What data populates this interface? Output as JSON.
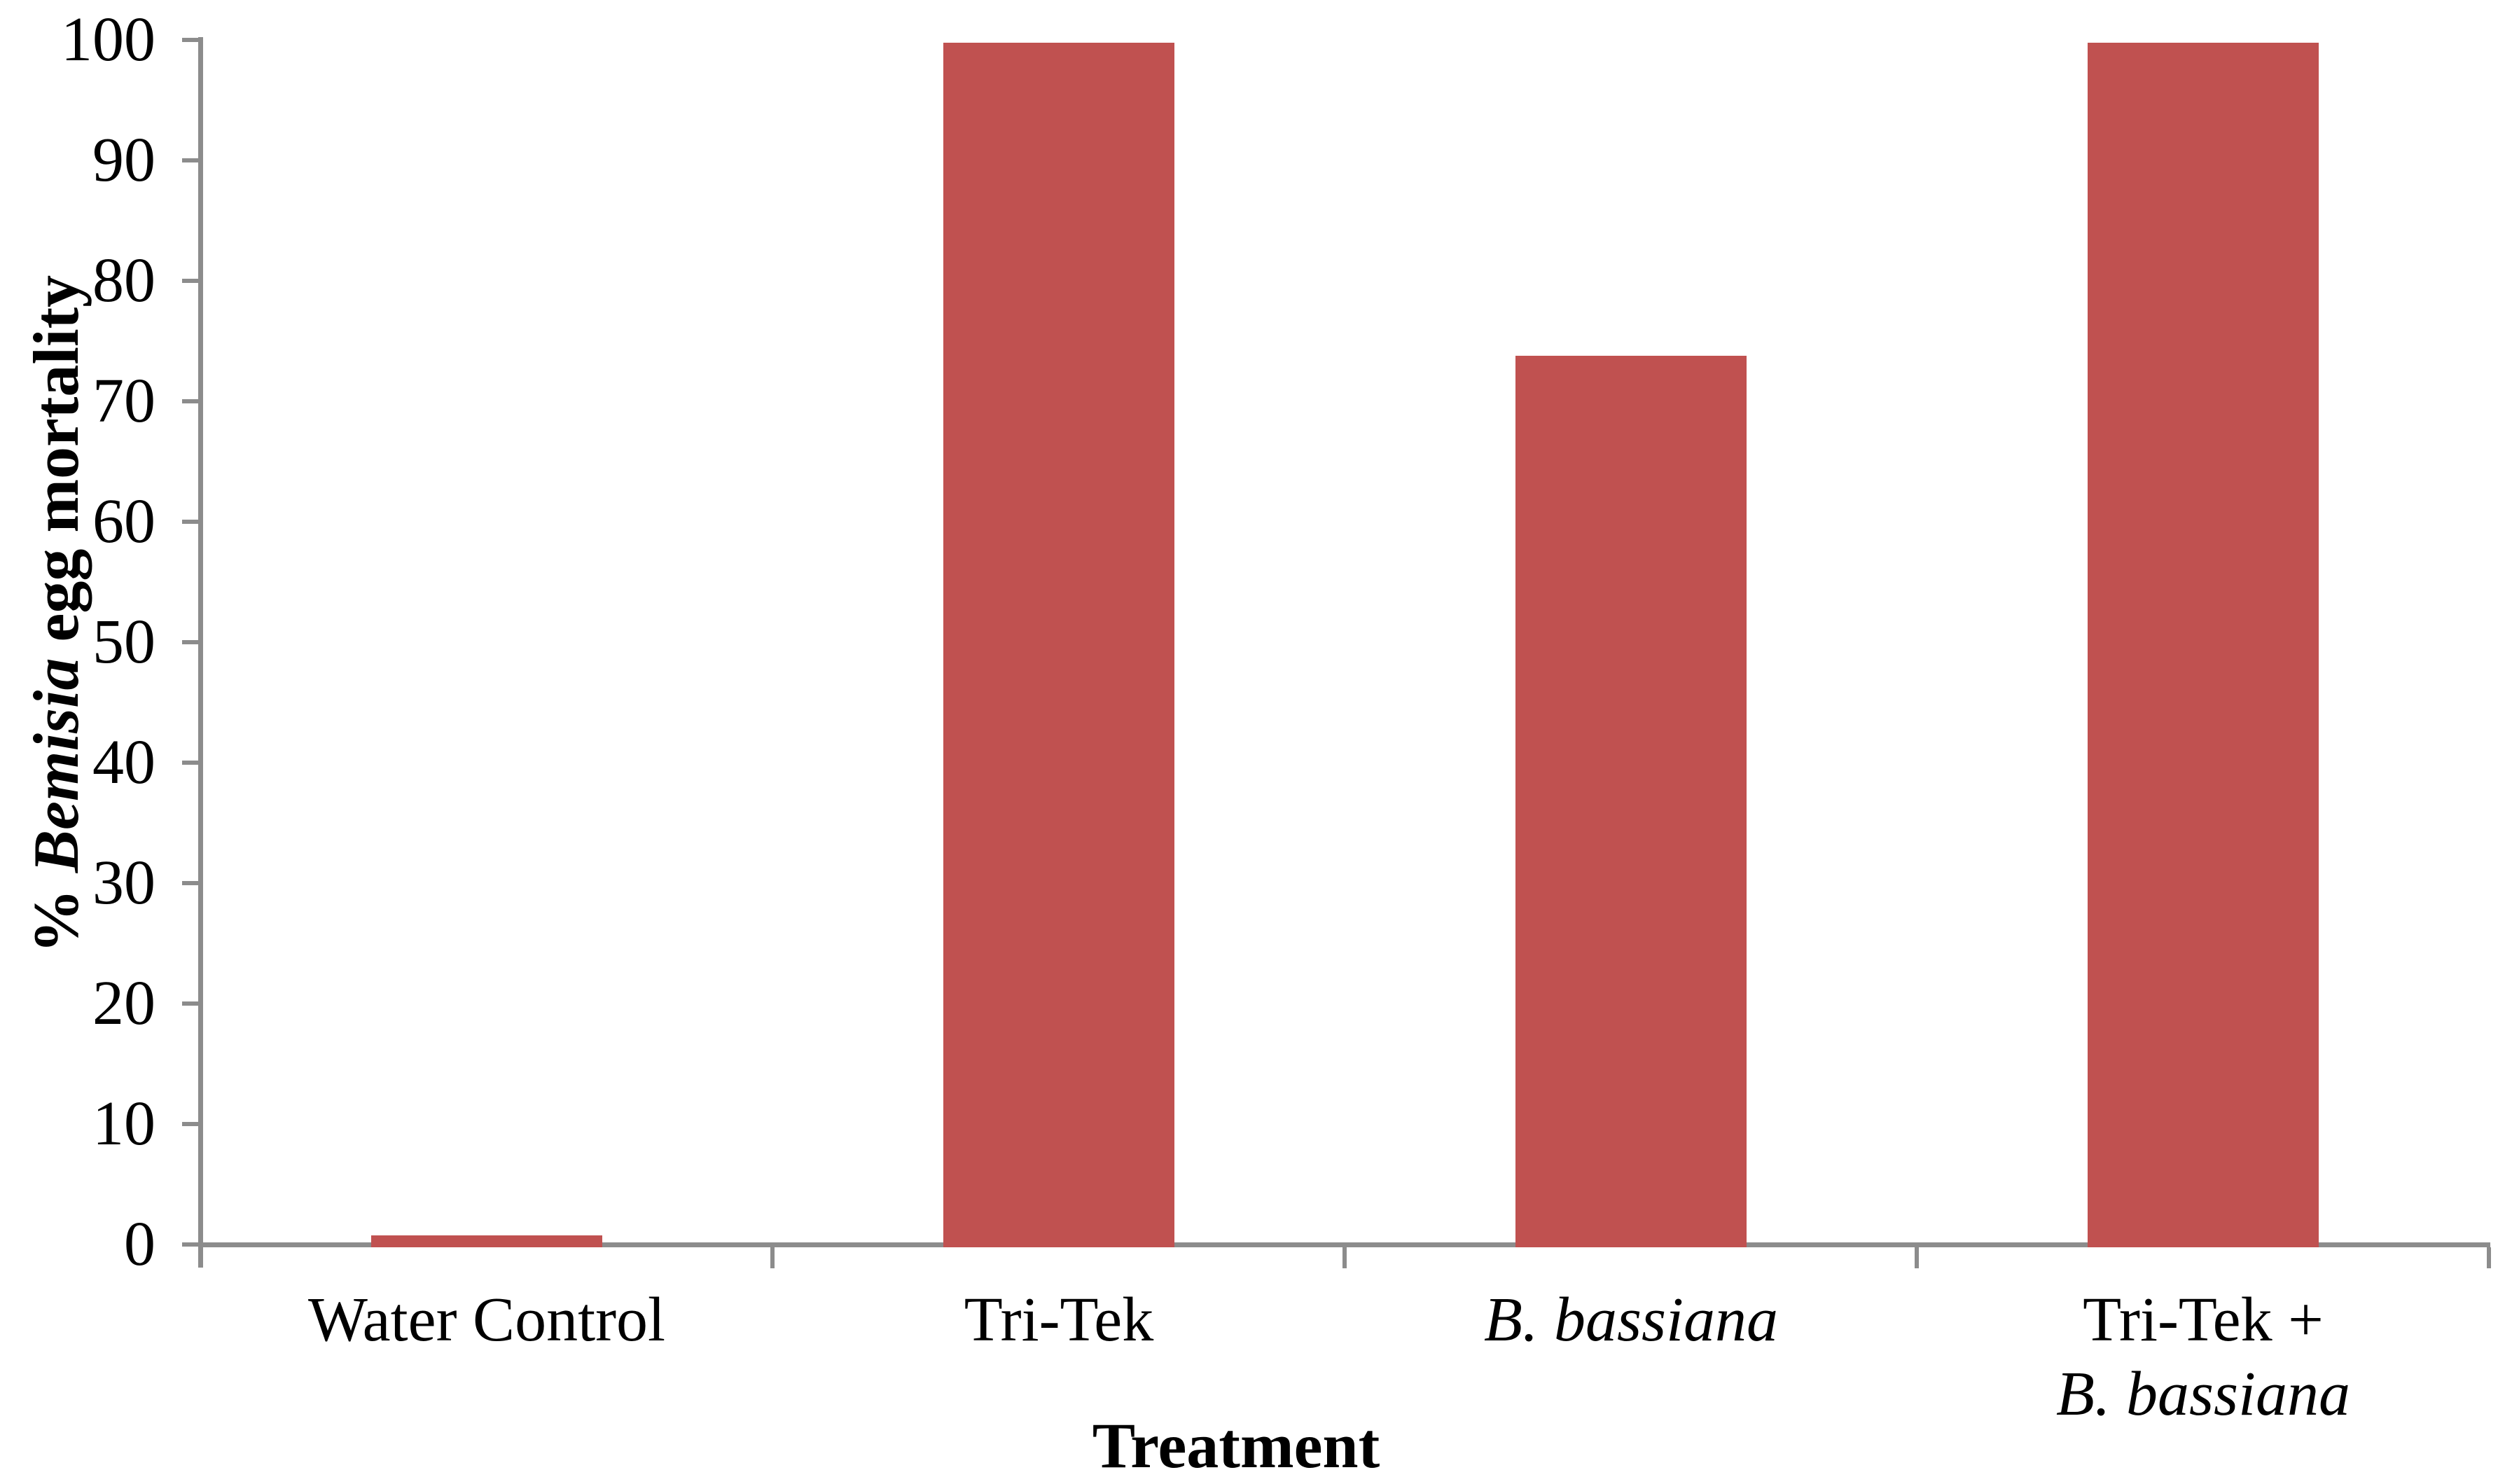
{
  "figure": {
    "background_color": "#ffffff",
    "text_color": "#000000"
  },
  "chart_data": {
    "type": "bar",
    "title": "",
    "xlabel": "Treatment",
    "ylabel": "% Bemisia egg mortality",
    "ylabel_segments": [
      {
        "text": "% ",
        "italic": false
      },
      {
        "text": "Bemisia",
        "italic": true
      },
      {
        "text": " egg mortality",
        "italic": false
      }
    ],
    "categories": [
      "Water Control",
      "Tri-Tek",
      "B. bassiana",
      "Tri-Tek + B. bassiana"
    ],
    "categories_display": [
      {
        "lines": [
          [
            {
              "text": "Water Control",
              "italic": false
            }
          ]
        ]
      },
      {
        "lines": [
          [
            {
              "text": "Tri-Tek",
              "italic": false
            }
          ]
        ]
      },
      {
        "lines": [
          [
            {
              "text": "B. bassiana",
              "italic": true
            }
          ]
        ]
      },
      {
        "lines": [
          [
            {
              "text": "Tri-Tek +",
              "italic": false
            }
          ],
          [
            {
              "text": "B. bassiana",
              "italic": true
            }
          ]
        ]
      }
    ],
    "values": [
      1,
      100,
      74,
      100
    ],
    "ylim": [
      0,
      100
    ],
    "ytick_step": 10,
    "ytick_labels": [
      "0",
      "10",
      "20",
      "30",
      "40",
      "50",
      "60",
      "70",
      "80",
      "90",
      "100"
    ],
    "grid": false,
    "legend": "none",
    "bar_color": "#c05150",
    "axis_color": "#8c8c8c"
  }
}
